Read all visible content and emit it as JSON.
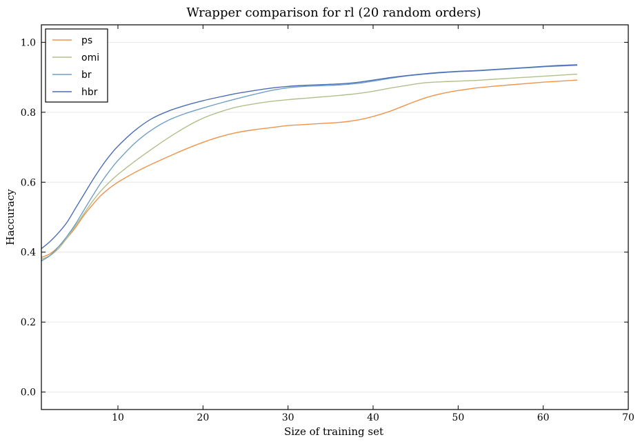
{
  "chart_data": {
    "type": "line",
    "title": "Wrapper comparison for rl (20 random orders)",
    "xlabel": "Size of training set",
    "ylabel": "Haccuracy",
    "xlim": [
      1,
      70
    ],
    "ylim": [
      -0.05,
      1.05
    ],
    "xticks": [
      10,
      20,
      30,
      40,
      50,
      60,
      70
    ],
    "yticks": [
      0.0,
      0.2,
      0.4,
      0.6,
      0.8,
      1.0
    ],
    "xtick_labels": [
      "10",
      "20",
      "30",
      "40",
      "50",
      "60",
      "70"
    ],
    "ytick_labels": [
      "0.0",
      "0.2",
      "0.4",
      "0.6",
      "0.8",
      "1.0"
    ],
    "grid": "horizontal",
    "legend_position": "top-left",
    "x": [
      1,
      2,
      3,
      4,
      5,
      6,
      7,
      8,
      9,
      10,
      12,
      14,
      16,
      18,
      20,
      22,
      24,
      26,
      28,
      30,
      32,
      34,
      36,
      38,
      40,
      42,
      44,
      46,
      48,
      50,
      52,
      54,
      56,
      58,
      60,
      62,
      64
    ],
    "series": [
      {
        "name": "ps",
        "color": "#f0924a",
        "values": [
          0.385,
          0.395,
          0.415,
          0.44,
          0.47,
          0.505,
          0.535,
          0.562,
          0.583,
          0.6,
          0.628,
          0.652,
          0.674,
          0.695,
          0.714,
          0.73,
          0.742,
          0.75,
          0.756,
          0.762,
          0.765,
          0.768,
          0.771,
          0.777,
          0.788,
          0.803,
          0.822,
          0.84,
          0.853,
          0.862,
          0.869,
          0.874,
          0.878,
          0.882,
          0.886,
          0.889,
          0.892
        ]
      },
      {
        "name": "omi",
        "color": "#b1bf8b",
        "values": [
          0.38,
          0.39,
          0.41,
          0.44,
          0.475,
          0.51,
          0.545,
          0.575,
          0.6,
          0.622,
          0.66,
          0.695,
          0.728,
          0.758,
          0.783,
          0.801,
          0.815,
          0.824,
          0.831,
          0.836,
          0.84,
          0.844,
          0.848,
          0.853,
          0.86,
          0.869,
          0.877,
          0.884,
          0.887,
          0.889,
          0.891,
          0.894,
          0.897,
          0.9,
          0.903,
          0.906,
          0.909
        ]
      },
      {
        "name": "br",
        "color": "#6d9ec7",
        "values": [
          0.375,
          0.39,
          0.415,
          0.445,
          0.48,
          0.52,
          0.56,
          0.598,
          0.632,
          0.662,
          0.712,
          0.75,
          0.778,
          0.797,
          0.812,
          0.826,
          0.839,
          0.851,
          0.862,
          0.87,
          0.874,
          0.876,
          0.878,
          0.882,
          0.889,
          0.897,
          0.904,
          0.909,
          0.913,
          0.916,
          0.918,
          0.921,
          0.924,
          0.927,
          0.93,
          0.932,
          0.934
        ]
      },
      {
        "name": "hbr",
        "color": "#4a6cb5",
        "values": [
          0.41,
          0.43,
          0.455,
          0.485,
          0.525,
          0.565,
          0.605,
          0.642,
          0.675,
          0.703,
          0.748,
          0.782,
          0.804,
          0.82,
          0.833,
          0.844,
          0.854,
          0.862,
          0.869,
          0.874,
          0.877,
          0.879,
          0.881,
          0.885,
          0.892,
          0.899,
          0.905,
          0.91,
          0.914,
          0.917,
          0.919,
          0.922,
          0.925,
          0.928,
          0.931,
          0.934,
          0.936
        ]
      }
    ]
  }
}
